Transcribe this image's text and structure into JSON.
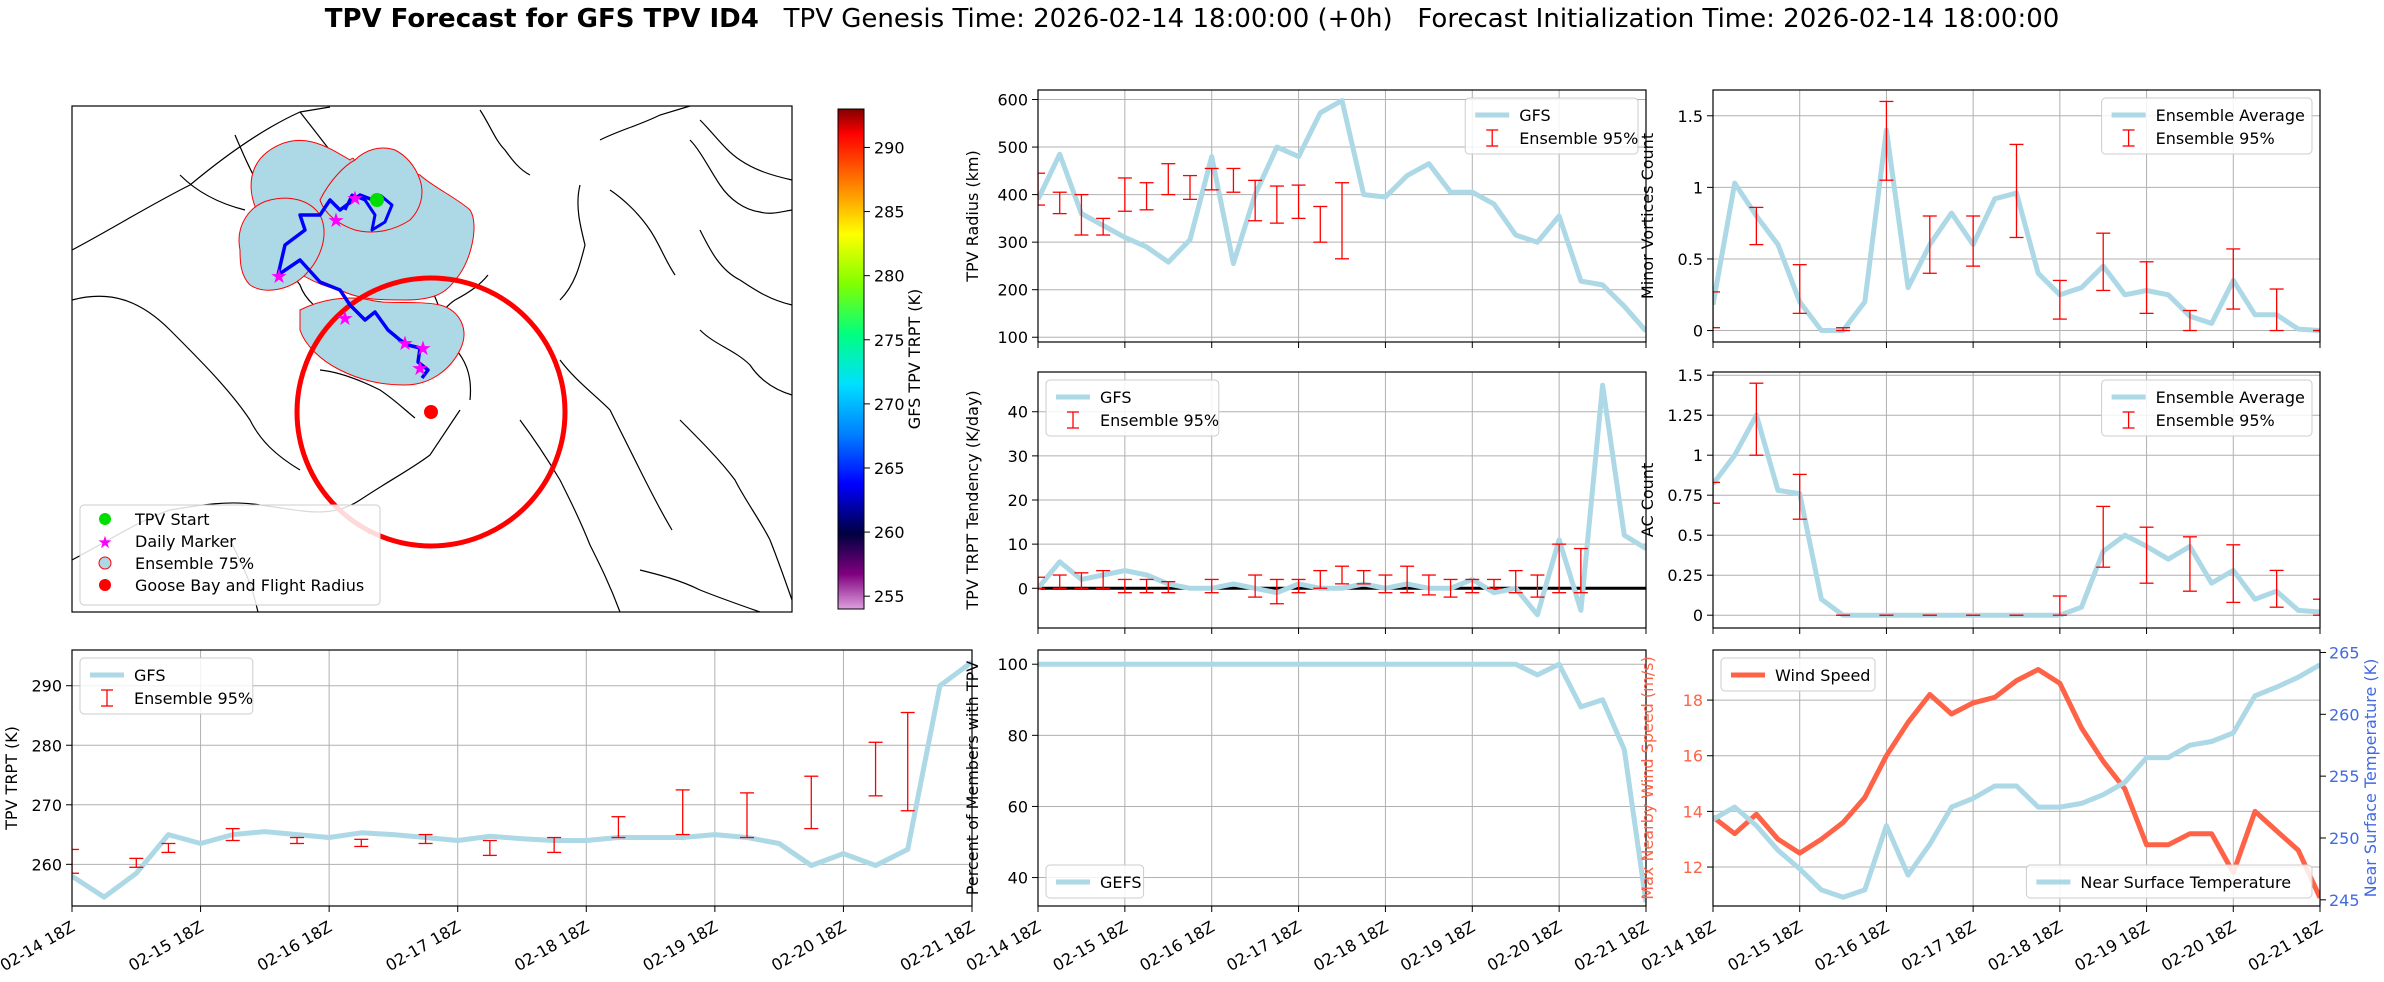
{
  "figure": {
    "title_bold": "TPV Forecast for GFS TPV ID4",
    "title_rest": "   TPV Genesis Time: 2026-02-14 18:00:00 (+0h)   Forecast Initialization Time: 2026-02-14 18:00:00"
  },
  "map": {
    "legend": [
      "TPV Start",
      "Daily Marker",
      "Ensemble 75%",
      "Goose Bay and Flight Radius"
    ],
    "legend_colors": [
      "#00dd00",
      "#ff00ff",
      "#add8e6",
      "#ff0000"
    ],
    "colorbar": {
      "label": "GFS TPV TRPT (K)",
      "min": 254,
      "max": 293,
      "ticks": [
        255,
        260,
        265,
        270,
        275,
        280,
        285,
        290
      ]
    }
  },
  "chart_data": [
    {
      "id": "radius",
      "type": "line",
      "ylabel": "TPV Radius (km)",
      "ylim": [
        90,
        620
      ],
      "yticks": [
        100,
        200,
        300,
        400,
        500,
        600
      ],
      "xlim": [
        0,
        28
      ],
      "show_xticks": false,
      "series": [
        {
          "name": "GFS",
          "color": "#add8e6",
          "values": [
            390,
            485,
            360,
            335,
            310,
            290,
            258,
            305,
            480,
            255,
            400,
            500,
            480,
            572,
            598,
            400,
            395,
            440,
            465,
            405,
            405,
            380,
            315,
            300,
            355,
            218,
            210,
            165,
            113
          ]
        }
      ],
      "errorbars": {
        "name": "Ensemble 95%",
        "color": "#ff0000",
        "points": [
          [
            0,
            378,
            445
          ],
          [
            1,
            360,
            405
          ],
          [
            2,
            315,
            400
          ],
          [
            3,
            315,
            350
          ],
          [
            4,
            365,
            435
          ],
          [
            5,
            368,
            425
          ],
          [
            6,
            400,
            465
          ],
          [
            7,
            390,
            440
          ],
          [
            8,
            410,
            455
          ],
          [
            9,
            405,
            455
          ],
          [
            10,
            345,
            430
          ],
          [
            11,
            340,
            418
          ],
          [
            12,
            350,
            420
          ],
          [
            13,
            300,
            375
          ],
          [
            14,
            265,
            425
          ]
        ]
      },
      "legend_pos": "top-right",
      "zero_line": false
    },
    {
      "id": "minor",
      "type": "line",
      "ylabel": "Minor Vortices Count",
      "ylim": [
        -0.08,
        1.68
      ],
      "yticks": [
        0.0,
        0.5,
        1.0,
        1.5
      ],
      "xlim": [
        0,
        28
      ],
      "show_xticks": false,
      "series": [
        {
          "name": "Ensemble Average",
          "color": "#add8e6",
          "values": [
            0.18,
            1.03,
            0.8,
            0.6,
            0.2,
            0.0,
            0.0,
            0.2,
            1.4,
            0.3,
            0.6,
            0.82,
            0.6,
            0.92,
            0.96,
            0.4,
            0.25,
            0.3,
            0.45,
            0.25,
            0.28,
            0.25,
            0.1,
            0.05,
            0.35,
            0.11,
            0.11,
            0.01,
            0.0
          ]
        }
      ],
      "errorbars": {
        "name": "Ensemble 95%",
        "color": "#ff0000",
        "points": [
          [
            0,
            0.02,
            0.27
          ],
          [
            2,
            0.6,
            0.86
          ],
          [
            4,
            0.12,
            0.46
          ],
          [
            6,
            0.0,
            0.02
          ],
          [
            8,
            1.05,
            1.6
          ],
          [
            10,
            0.4,
            0.8
          ],
          [
            12,
            0.45,
            0.8
          ],
          [
            14,
            0.65,
            1.3
          ],
          [
            16,
            0.08,
            0.35
          ],
          [
            18,
            0.28,
            0.68
          ],
          [
            20,
            0.12,
            0.48
          ],
          [
            22,
            0.0,
            0.14
          ],
          [
            24,
            0.15,
            0.57
          ],
          [
            26,
            0.0,
            0.29
          ],
          [
            28,
            0.0,
            0.0
          ]
        ]
      },
      "legend_pos": "top-right",
      "zero_line": false
    },
    {
      "id": "tendency",
      "type": "line",
      "ylabel": "TPV TRPT Tendency (K/day)",
      "ylim": [
        -9,
        49
      ],
      "yticks": [
        0,
        10,
        20,
        30,
        40
      ],
      "xlim": [
        0,
        28
      ],
      "show_xticks": false,
      "series": [
        {
          "name": "GFS",
          "color": "#add8e6",
          "values": [
            0,
            6,
            2,
            3,
            4,
            3,
            1,
            0,
            0,
            1,
            0,
            -1,
            1,
            0,
            0,
            1,
            0,
            1,
            0,
            0,
            2,
            -1,
            0,
            -6,
            11,
            -5,
            46,
            12,
            9
          ]
        }
      ],
      "errorbars": {
        "name": "Ensemble 95%",
        "color": "#ff0000",
        "points": [
          [
            0,
            0,
            2.5
          ],
          [
            1,
            0,
            3
          ],
          [
            2,
            0,
            3.5
          ],
          [
            3,
            0,
            4
          ],
          [
            4,
            -1,
            2
          ],
          [
            5,
            -1,
            2
          ],
          [
            6,
            -1,
            1.5
          ],
          [
            8,
            -1,
            2
          ],
          [
            10,
            -2,
            3
          ],
          [
            11,
            -3.5,
            2
          ],
          [
            12,
            -1,
            2
          ],
          [
            13,
            0,
            4
          ],
          [
            14,
            1,
            5
          ],
          [
            15,
            1,
            4
          ],
          [
            16,
            -1,
            3
          ],
          [
            17,
            -1,
            5
          ],
          [
            18,
            -1.5,
            3
          ],
          [
            19,
            -2,
            2
          ],
          [
            20,
            -1,
            2
          ],
          [
            21,
            0,
            2
          ],
          [
            22,
            -1,
            4
          ],
          [
            23,
            -2,
            3
          ],
          [
            24,
            -1,
            10
          ],
          [
            25,
            -1,
            9
          ]
        ]
      },
      "legend_pos": "top-left",
      "zero_line": true
    },
    {
      "id": "ac",
      "type": "line",
      "ylabel": "AC Count",
      "ylim": [
        -0.08,
        1.52
      ],
      "yticks": [
        0.0,
        0.25,
        0.5,
        0.75,
        1.0,
        1.25,
        1.5
      ],
      "xlim": [
        0,
        28
      ],
      "show_xticks": false,
      "series": [
        {
          "name": "Ensemble Average",
          "color": "#add8e6",
          "values": [
            0.82,
            1.0,
            1.25,
            0.78,
            0.76,
            0.1,
            0.0,
            0.0,
            0.0,
            0.0,
            0.0,
            0.0,
            0.0,
            0.0,
            0.0,
            0.0,
            0.0,
            0.05,
            0.4,
            0.5,
            0.43,
            0.35,
            0.43,
            0.2,
            0.28,
            0.1,
            0.15,
            0.03,
            0.02
          ]
        }
      ],
      "errorbars": {
        "name": "Ensemble 95%",
        "color": "#ff0000",
        "points": [
          [
            0,
            0.7,
            0.83
          ],
          [
            2,
            1.0,
            1.45
          ],
          [
            4,
            0.6,
            0.88
          ],
          [
            6,
            0.0,
            0.0
          ],
          [
            8,
            0.0,
            0.0
          ],
          [
            10,
            0.0,
            0.0
          ],
          [
            12,
            0.0,
            0.0
          ],
          [
            14,
            0.0,
            0.0
          ],
          [
            16,
            0.0,
            0.12
          ],
          [
            18,
            0.3,
            0.68
          ],
          [
            20,
            0.2,
            0.55
          ],
          [
            22,
            0.15,
            0.49
          ],
          [
            24,
            0.08,
            0.44
          ],
          [
            26,
            0.05,
            0.28
          ],
          [
            28,
            0.0,
            0.1
          ]
        ]
      },
      "legend_pos": "top-right",
      "zero_line": false
    },
    {
      "id": "trpt",
      "type": "line",
      "ylabel": "TPV TRPT (K)",
      "ylim": [
        253,
        296
      ],
      "yticks": [
        260,
        270,
        280,
        290
      ],
      "xlim": [
        0,
        28
      ],
      "show_xticks": true,
      "xticks": [
        "02-14 18Z",
        "02-15 18Z",
        "02-16 18Z",
        "02-17 18Z",
        "02-18 18Z",
        "02-19 18Z",
        "02-20 18Z",
        "02-21 18Z"
      ],
      "series": [
        {
          "name": "GFS",
          "color": "#add8e6",
          "values": [
            258,
            254.5,
            258.5,
            265,
            263.5,
            265,
            265.5,
            265,
            264.5,
            265.3,
            265,
            264.5,
            264,
            264.7,
            264.3,
            264,
            264,
            264.5,
            264.5,
            264.5,
            265,
            264.5,
            263.5,
            259.8,
            261.8,
            259.8,
            262.5,
            290,
            294
          ]
        }
      ],
      "errorbars": {
        "name": "Ensemble 95%",
        "color": "#ff0000",
        "points": [
          [
            0,
            258.5,
            262.5
          ],
          [
            2,
            259.5,
            261
          ],
          [
            3,
            262,
            263.5
          ],
          [
            5,
            264,
            266
          ],
          [
            7,
            263.5,
            264.5
          ],
          [
            9,
            263,
            264.2
          ],
          [
            11,
            263.5,
            265
          ],
          [
            13,
            261.5,
            264
          ],
          [
            15,
            262,
            264.5
          ],
          [
            17,
            264.5,
            268
          ],
          [
            19,
            265,
            272.5
          ],
          [
            21,
            264.5,
            272
          ],
          [
            23,
            266,
            274.8
          ],
          [
            25,
            271.5,
            280.5
          ],
          [
            26,
            269,
            285.5
          ]
        ]
      },
      "legend_pos": "top-left",
      "zero_line": false
    },
    {
      "id": "percent",
      "type": "line",
      "ylabel": "Percent of Members with TPV",
      "ylim": [
        32,
        104
      ],
      "yticks": [
        40,
        60,
        80,
        100
      ],
      "xlim": [
        0,
        28
      ],
      "show_xticks": true,
      "xticks": [
        "02-14 18Z",
        "02-15 18Z",
        "02-16 18Z",
        "02-17 18Z",
        "02-18 18Z",
        "02-19 18Z",
        "02-20 18Z",
        "02-21 18Z"
      ],
      "series": [
        {
          "name": "GEFS",
          "color": "#add8e6",
          "values": [
            100,
            100,
            100,
            100,
            100,
            100,
            100,
            100,
            100,
            100,
            100,
            100,
            100,
            100,
            100,
            100,
            100,
            100,
            100,
            100,
            100,
            100,
            100,
            97,
            100,
            88,
            90,
            76,
            33
          ]
        }
      ],
      "legend_pos": "bottom-left",
      "zero_line": false
    },
    {
      "id": "wind",
      "type": "line",
      "ylabel": "Max Nearby Wind Speed (m/s)",
      "ylim": [
        10.6,
        19.8
      ],
      "yticks": [
        12,
        14,
        16,
        18
      ],
      "y2label": "Near Surface Temperature (K)",
      "y2lim": [
        244.5,
        265.2
      ],
      "y2ticks": [
        245,
        250,
        255,
        260,
        265
      ],
      "xlim": [
        0,
        28
      ],
      "show_xticks": true,
      "xticks": [
        "02-14 18Z",
        "02-15 18Z",
        "02-16 18Z",
        "02-17 18Z",
        "02-18 18Z",
        "02-19 18Z",
        "02-20 18Z",
        "02-21 18Z"
      ],
      "series": [
        {
          "name": "Wind Speed",
          "axis": "left",
          "color": "#ff6347",
          "values": [
            13.8,
            13.2,
            13.9,
            13.0,
            12.5,
            13.0,
            13.6,
            14.5,
            16.0,
            17.2,
            18.2,
            17.5,
            17.9,
            18.1,
            18.7,
            19.1,
            18.6,
            17.0,
            15.8,
            14.8,
            12.8,
            12.8,
            13.2,
            13.2,
            11.8,
            14.0,
            13.3,
            12.6,
            10.9
          ]
        },
        {
          "name": "Near Surface Temperature",
          "axis": "right",
          "color": "#add8e6",
          "values": [
            251.5,
            252.5,
            251.0,
            249.0,
            247.5,
            245.8,
            245.2,
            245.8,
            251.0,
            247.0,
            249.5,
            252.5,
            253.2,
            254.2,
            254.2,
            252.5,
            252.5,
            252.8,
            253.5,
            254.5,
            256.5,
            256.5,
            257.5,
            257.8,
            258.5,
            261.5,
            262.2,
            263.0,
            264.0
          ]
        }
      ],
      "legend_pos": "split",
      "zero_line": false
    }
  ]
}
